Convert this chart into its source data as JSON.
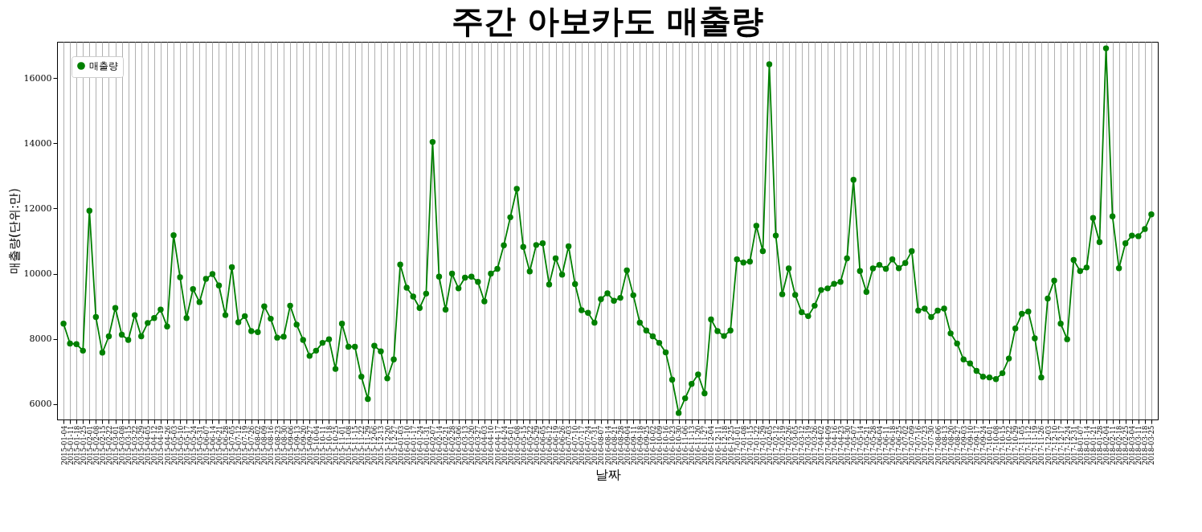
{
  "chart_data": {
    "type": "line",
    "title": "주간 아보카도 매출량",
    "xlabel": "날짜",
    "ylabel": "매출량(단위:만)",
    "categories": [
      "2015-01-04",
      "2015-01-11",
      "2015-01-18",
      "2015-01-25",
      "2015-02-01",
      "2015-02-08",
      "2015-02-15",
      "2015-02-22",
      "2015-03-01",
      "2015-03-08",
      "2015-03-15",
      "2015-03-22",
      "2015-03-29",
      "2015-04-05",
      "2015-04-12",
      "2015-04-19",
      "2015-04-26",
      "2015-05-03",
      "2015-05-10",
      "2015-05-17",
      "2015-05-24",
      "2015-05-31",
      "2015-06-07",
      "2015-06-14",
      "2015-06-21",
      "2015-06-28",
      "2015-07-05",
      "2015-07-12",
      "2015-07-19",
      "2015-07-26",
      "2015-08-02",
      "2015-08-09",
      "2015-08-16",
      "2015-08-23",
      "2015-08-30",
      "2015-09-06",
      "2015-09-13",
      "2015-09-20",
      "2015-09-27",
      "2015-10-04",
      "2015-10-11",
      "2015-10-18",
      "2015-10-25",
      "2015-11-01",
      "2015-11-08",
      "2015-11-15",
      "2015-11-22",
      "2015-11-29",
      "2015-12-06",
      "2015-12-13",
      "2015-12-20",
      "2015-12-27",
      "2016-01-03",
      "2016-01-10",
      "2016-01-17",
      "2016-01-24",
      "2016-01-31",
      "2016-02-07",
      "2016-02-14",
      "2016-02-21",
      "2016-02-28",
      "2016-03-06",
      "2016-03-13",
      "2016-03-20",
      "2016-03-27",
      "2016-04-03",
      "2016-04-10",
      "2016-04-17",
      "2016-04-24",
      "2016-05-01",
      "2016-05-08",
      "2016-05-15",
      "2016-05-22",
      "2016-05-29",
      "2016-06-05",
      "2016-06-12",
      "2016-06-19",
      "2016-06-26",
      "2016-07-03",
      "2016-07-10",
      "2016-07-17",
      "2016-07-24",
      "2016-07-31",
      "2016-08-07",
      "2016-08-14",
      "2016-08-21",
      "2016-08-28",
      "2016-09-04",
      "2016-09-11",
      "2016-09-18",
      "2016-09-25",
      "2016-10-02",
      "2016-10-09",
      "2016-10-16",
      "2016-10-23",
      "2016-10-30",
      "2016-11-06",
      "2016-11-13",
      "2016-11-20",
      "2016-11-27",
      "2016-12-04",
      "2016-12-11",
      "2016-12-18",
      "2016-12-25",
      "2017-01-01",
      "2017-01-08",
      "2017-01-15",
      "2017-01-22",
      "2017-01-29",
      "2017-02-05",
      "2017-02-12",
      "2017-02-19",
      "2017-02-26",
      "2017-03-05",
      "2017-03-12",
      "2017-03-19",
      "2017-03-26",
      "2017-04-02",
      "2017-04-09",
      "2017-04-16",
      "2017-04-23",
      "2017-04-30",
      "2017-05-07",
      "2017-05-14",
      "2017-05-21",
      "2017-05-28",
      "2017-06-04",
      "2017-06-11",
      "2017-06-18",
      "2017-06-25",
      "2017-07-02",
      "2017-07-09",
      "2017-07-16",
      "2017-07-23",
      "2017-07-30",
      "2017-08-06",
      "2017-08-13",
      "2017-08-20",
      "2017-08-27",
      "2017-09-03",
      "2017-09-10",
      "2017-09-17",
      "2017-09-24",
      "2017-10-01",
      "2017-10-08",
      "2017-10-15",
      "2017-10-22",
      "2017-10-29",
      "2017-11-05",
      "2017-11-12",
      "2017-11-19",
      "2017-11-26",
      "2017-12-03",
      "2017-12-10",
      "2017-12-17",
      "2017-12-24",
      "2017-12-31",
      "2018-01-07",
      "2018-01-14",
      "2018-01-21",
      "2018-01-28",
      "2018-02-04",
      "2018-02-11",
      "2018-02-18",
      "2018-02-25",
      "2018-03-04",
      "2018-03-11",
      "2018-03-18",
      "2018-03-25"
    ],
    "series": [
      {
        "name": "매출량",
        "color": "#008000",
        "values": [
          8470,
          7860,
          7840,
          7640,
          11930,
          8670,
          7580,
          8080,
          8950,
          8130,
          7970,
          8730,
          8080,
          8490,
          8640,
          8900,
          8380,
          11180,
          9890,
          8640,
          9530,
          9130,
          9840,
          9990,
          9640,
          8730,
          10200,
          8510,
          8700,
          8240,
          8210,
          9000,
          8620,
          8040,
          8070,
          9020,
          8440,
          7970,
          7480,
          7640,
          7880,
          7990,
          7080,
          8470,
          7760,
          7760,
          6840,
          6160,
          7790,
          7620,
          6790,
          7370,
          10280,
          9570,
          9300,
          8950,
          9390,
          14040,
          9910,
          8900,
          10000,
          9550,
          9880,
          9910,
          9750,
          9150,
          10000,
          10150,
          10870,
          11730,
          12600,
          10820,
          10070,
          10880,
          10930,
          9670,
          10470,
          9970,
          10840,
          9680,
          8880,
          8800,
          8500,
          9220,
          9400,
          9170,
          9260,
          10100,
          9340,
          8500,
          8260,
          8080,
          7880,
          7590,
          6750,
          5730,
          6180,
          6620,
          6910,
          6330,
          8600,
          8240,
          8090,
          8260,
          10440,
          10340,
          10370,
          11470,
          10690,
          16420,
          11170,
          9370,
          10160,
          9350,
          8820,
          8700,
          9020,
          9500,
          9550,
          9690,
          9750,
          10470,
          12880,
          10080,
          9440,
          10160,
          10270,
          10150,
          10440,
          10170,
          10330,
          10690,
          8870,
          8930,
          8670,
          8870,
          8930,
          8170,
          7860,
          7370,
          7250,
          7020,
          6840,
          6820,
          6770,
          6950,
          7400,
          8320,
          8770,
          8840,
          8020,
          6820,
          9240,
          9790,
          8470,
          7990,
          10420,
          10080,
          10190,
          11710,
          10970,
          16910,
          11760,
          10170,
          10930,
          11170,
          11150,
          11370,
          11820
        ]
      }
    ],
    "ylim": [
      5530,
      17110
    ],
    "yticks": [
      6000,
      8000,
      10000,
      12000,
      14000,
      16000
    ],
    "grid": "x",
    "legend": "top left",
    "marker": "circle",
    "line_style": "solid"
  }
}
